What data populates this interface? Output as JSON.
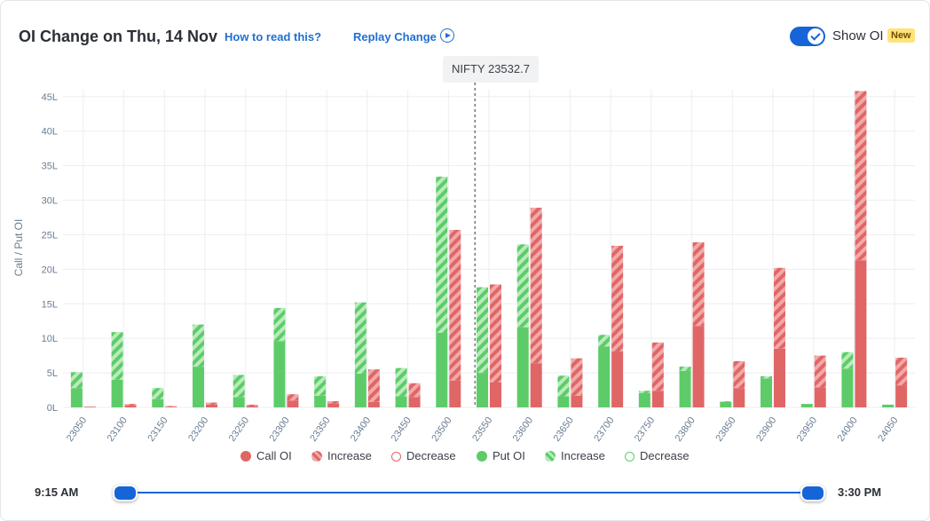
{
  "header": {
    "title": "OI Change on Thu, 14 Nov",
    "how_to_read": "How to read this?",
    "replay": "Replay Change",
    "show_oi_label": "Show OI",
    "new_badge": "New",
    "show_oi_enabled": true
  },
  "spot": {
    "label": "NIFTY 23532.7",
    "value": 23532.7
  },
  "legend": {
    "call_oi": "Call OI",
    "call_increase": "Increase",
    "call_decrease": "Decrease",
    "put_oi": "Put OI",
    "put_increase": "Increase",
    "put_decrease": "Decrease"
  },
  "colors": {
    "call": "#e06666",
    "call_light": "#f2a9a9",
    "put": "#5dcc68",
    "put_light": "#b9ebbd",
    "accent": "#1565d8"
  },
  "slider": {
    "start_label": "9:15 AM",
    "end_label": "3:30 PM",
    "start_fraction": 0,
    "end_fraction": 1
  },
  "chart_data": {
    "type": "bar",
    "ylabel": "Call / Put OI",
    "unit": "L",
    "ylim": [
      0,
      46
    ],
    "yticks": [
      0,
      5,
      10,
      15,
      20,
      25,
      30,
      35,
      40,
      45
    ],
    "grid": true,
    "categories": [
      "23050",
      "23100",
      "23150",
      "23200",
      "23250",
      "23300",
      "23350",
      "23400",
      "23450",
      "23500",
      "23550",
      "23600",
      "23650",
      "23700",
      "23750",
      "23800",
      "23850",
      "23900",
      "23950",
      "24000",
      "24050"
    ],
    "series": [
      {
        "name": "Put OI",
        "base": [
          2.8,
          4.0,
          1.2,
          5.9,
          1.5,
          9.6,
          1.7,
          4.9,
          1.6,
          10.8,
          5.0,
          11.6,
          1.6,
          8.8,
          2.1,
          5.3,
          0.8,
          4.2,
          0.5,
          5.6,
          0.4
        ],
        "increase": [
          2.3,
          6.9,
          1.6,
          6.1,
          3.2,
          4.8,
          2.8,
          10.3,
          4.1,
          22.6,
          12.4,
          12.0,
          3.0,
          1.7,
          0.3,
          0.6,
          0.1,
          0.3,
          0.0,
          2.4,
          0.0
        ]
      },
      {
        "name": "Call OI",
        "base": [
          0.1,
          0.3,
          0.1,
          0.4,
          0.2,
          1.0,
          0.6,
          0.8,
          1.5,
          3.9,
          3.6,
          6.4,
          1.7,
          8.1,
          2.4,
          11.8,
          2.8,
          8.5,
          2.9,
          21.3,
          3.2
        ],
        "increase": [
          0.0,
          0.2,
          0.1,
          0.3,
          0.2,
          0.9,
          0.3,
          4.7,
          2.0,
          21.8,
          14.2,
          22.5,
          5.4,
          15.3,
          7.0,
          12.1,
          3.9,
          11.7,
          4.6,
          24.5,
          4.0
        ]
      }
    ]
  }
}
